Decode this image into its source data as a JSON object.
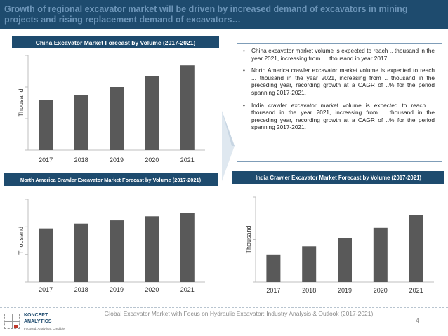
{
  "header": {
    "title": "Growth of regional excavator market will be driven by increased demand of excavators in mining projects and rising replacement demand of excavators…"
  },
  "colors": {
    "header_bg": "#1e4b6e",
    "header_text": "#6d95b8",
    "bar": "#595959",
    "info_border": "#7f9db8"
  },
  "chart_data": [
    {
      "type": "bar",
      "title": "China Excavator Market Forecast by Volume (2017-2021)",
      "categories": [
        "2017",
        "2018",
        "2019",
        "2020",
        "2021"
      ],
      "values": [
        60,
        66,
        76,
        89,
        102
      ],
      "ylabel": "Thousand",
      "xlabel": "",
      "ylim": [
        0,
        114
      ],
      "grid": false
    },
    {
      "type": "bar",
      "title": "North America Crawler Excavator Market Forecast by Volume (2017-2021)",
      "categories": [
        "2017",
        "2018",
        "2019",
        "2020",
        "2021"
      ],
      "values": [
        66,
        72,
        76,
        81,
        85
      ],
      "ylabel": "Thousand",
      "xlabel": "",
      "ylim": [
        0,
        102
      ],
      "grid": false
    },
    {
      "type": "bar",
      "title": "India Crawler Excavator Market Forecast by Volume (2017-2021)",
      "categories": [
        "2017",
        "2018",
        "2019",
        "2020",
        "2021"
      ],
      "values": [
        34,
        44,
        54,
        67,
        83
      ],
      "ylabel": "Thousand",
      "xlabel": "",
      "ylim": [
        0,
        105
      ],
      "grid": false
    }
  ],
  "info": {
    "bullets": [
      "China excavator market volume is expected to reach .. thousand in the year 2021, increasing from … thousand in year 2017.",
      "North America crawler excavator market volume is expected to reach ... thousand in the year 2021, increasing from .. thousand in the preceding year, recording growth at a CAGR of ..% for the period spanning 2017-2021.",
      "India crawler excavator market volume is expected to reach ... thousand in the year 2021, increasing from .. thousand in the preceding year, recording growth at a CAGR of ..% for the period spanning 2017-2021."
    ],
    "bullet_symbol": "•"
  },
  "footer": {
    "text": "Global Excavator Market with Focus on Hydraulic Excavator: Industry Analysis & Outlook (2017-2021)",
    "page_number": "4"
  },
  "logo": {
    "name_line1": "KONCEPT",
    "name_line2": "ANALYTICS",
    "tagline": "Focused, Analytical, Credible",
    "icon": "koncept-logo-icon"
  }
}
